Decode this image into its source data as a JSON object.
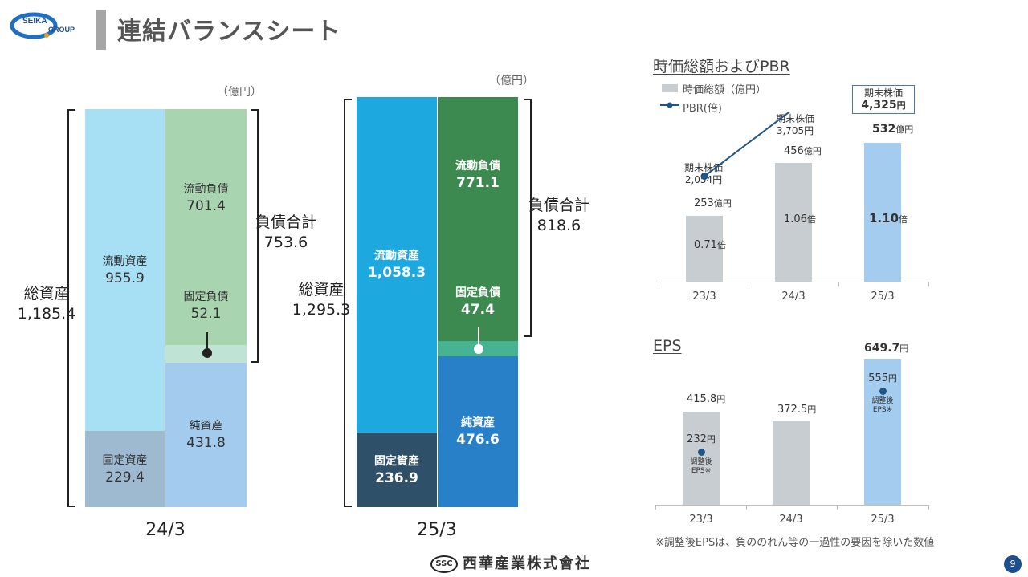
{
  "header": {
    "logo_text_top": "SEIKA",
    "logo_text_bottom": "GROUP",
    "title": "連結バランスシート"
  },
  "balance_sheet": {
    "unit": "（億円）",
    "fy24": {
      "year": "24/3",
      "total_assets_label": "総資産",
      "total_assets_value": "1,185.4",
      "current_assets_label": "流動資産",
      "current_assets_value": "955.9",
      "fixed_assets_label": "固定資産",
      "fixed_assets_value": "229.4",
      "current_liab_label": "流動負債",
      "current_liab_value": "701.4",
      "fixed_liab_label": "固定負債",
      "fixed_liab_value": "52.1",
      "net_assets_label": "純資産",
      "net_assets_value": "431.8",
      "total_liab_label": "負債合計",
      "total_liab_value": "753.6"
    },
    "fy25": {
      "year": "25/3",
      "total_assets_label": "総資産",
      "total_assets_value": "1,295.3",
      "current_assets_label": "流動資産",
      "current_assets_value": "1,058.3",
      "fixed_assets_label": "固定資産",
      "fixed_assets_value": "236.9",
      "current_liab_label": "流動負債",
      "current_liab_value": "771.1",
      "fixed_liab_label": "固定負債",
      "fixed_liab_value": "47.4",
      "net_assets_label": "純資産",
      "net_assets_value": "476.6",
      "total_liab_label": "負債合計",
      "total_liab_value": "818.6"
    },
    "colors": {
      "fy24_current_assets": "#a7dff4",
      "fy24_fixed_assets": "#9dbad0",
      "fy24_current_liab": "#a8d5b0",
      "fy24_fixed_liab": "#bfe4d6",
      "fy24_net_assets": "#a3cbed",
      "fy25_current_assets": "#1ea8e0",
      "fy25_fixed_assets": "#2e5068",
      "fy25_current_liab": "#3d8a50",
      "fy25_fixed_liab": "#46b393",
      "fy25_net_assets": "#2880c8"
    }
  },
  "market_chart": {
    "title": "時価総額およびPBR",
    "legend_bar": "時価総額（億円）",
    "legend_line": "PBR(倍)",
    "categories": [
      "23/3",
      "24/3",
      "25/3"
    ],
    "bar_values": [
      253,
      456,
      532
    ],
    "bar_value_numbers": [
      "253",
      "456",
      "532"
    ],
    "bar_unit": "億円",
    "pbr_values": [
      0.71,
      1.06,
      1.1
    ],
    "pbr_labels": [
      "0.71",
      "1.06",
      "1.10"
    ],
    "pbr_unit": "倍",
    "price_label": "期末株価",
    "price_values": [
      "2,054円",
      "3,705円"
    ],
    "price_last_number": "4,325",
    "price_last_unit": "円",
    "colors": {
      "bar": "#c8cdd1",
      "bar_highlight": "#a4ccee",
      "line": "#1f5587"
    }
  },
  "eps_chart": {
    "title": "EPS",
    "categories": [
      "23/3",
      "24/3",
      "25/3"
    ],
    "values": [
      415.8,
      372.5,
      649.7
    ],
    "value_labels": [
      "415.8",
      "372.5",
      "649.7"
    ],
    "unit": "円",
    "adjusted_values": [
      "232",
      "555"
    ],
    "adjusted_label_1": "調整後",
    "adjusted_label_2": "EPS※",
    "footnote": "※調整後EPSは、負ののれん等の一過性の要因を除いた数値"
  },
  "chart_data": [
    {
      "type": "bar",
      "title": "時価総額およびPBR",
      "categories": [
        "23/3",
        "24/3",
        "25/3"
      ],
      "series": [
        {
          "name": "時価総額（億円）",
          "values": [
            253,
            456,
            532
          ]
        },
        {
          "name": "PBR(倍)",
          "values": [
            0.71,
            1.06,
            1.1
          ]
        }
      ]
    },
    {
      "type": "bar",
      "title": "EPS",
      "categories": [
        "23/3",
        "24/3",
        "25/3"
      ],
      "values": [
        415.8,
        372.5,
        649.7
      ],
      "series": [
        {
          "name": "調整後EPS※",
          "values": [
            232,
            null,
            555
          ]
        }
      ]
    }
  ],
  "footer": {
    "company": "西華産業株式會社",
    "logo_mark": "SSC",
    "page": "9"
  }
}
